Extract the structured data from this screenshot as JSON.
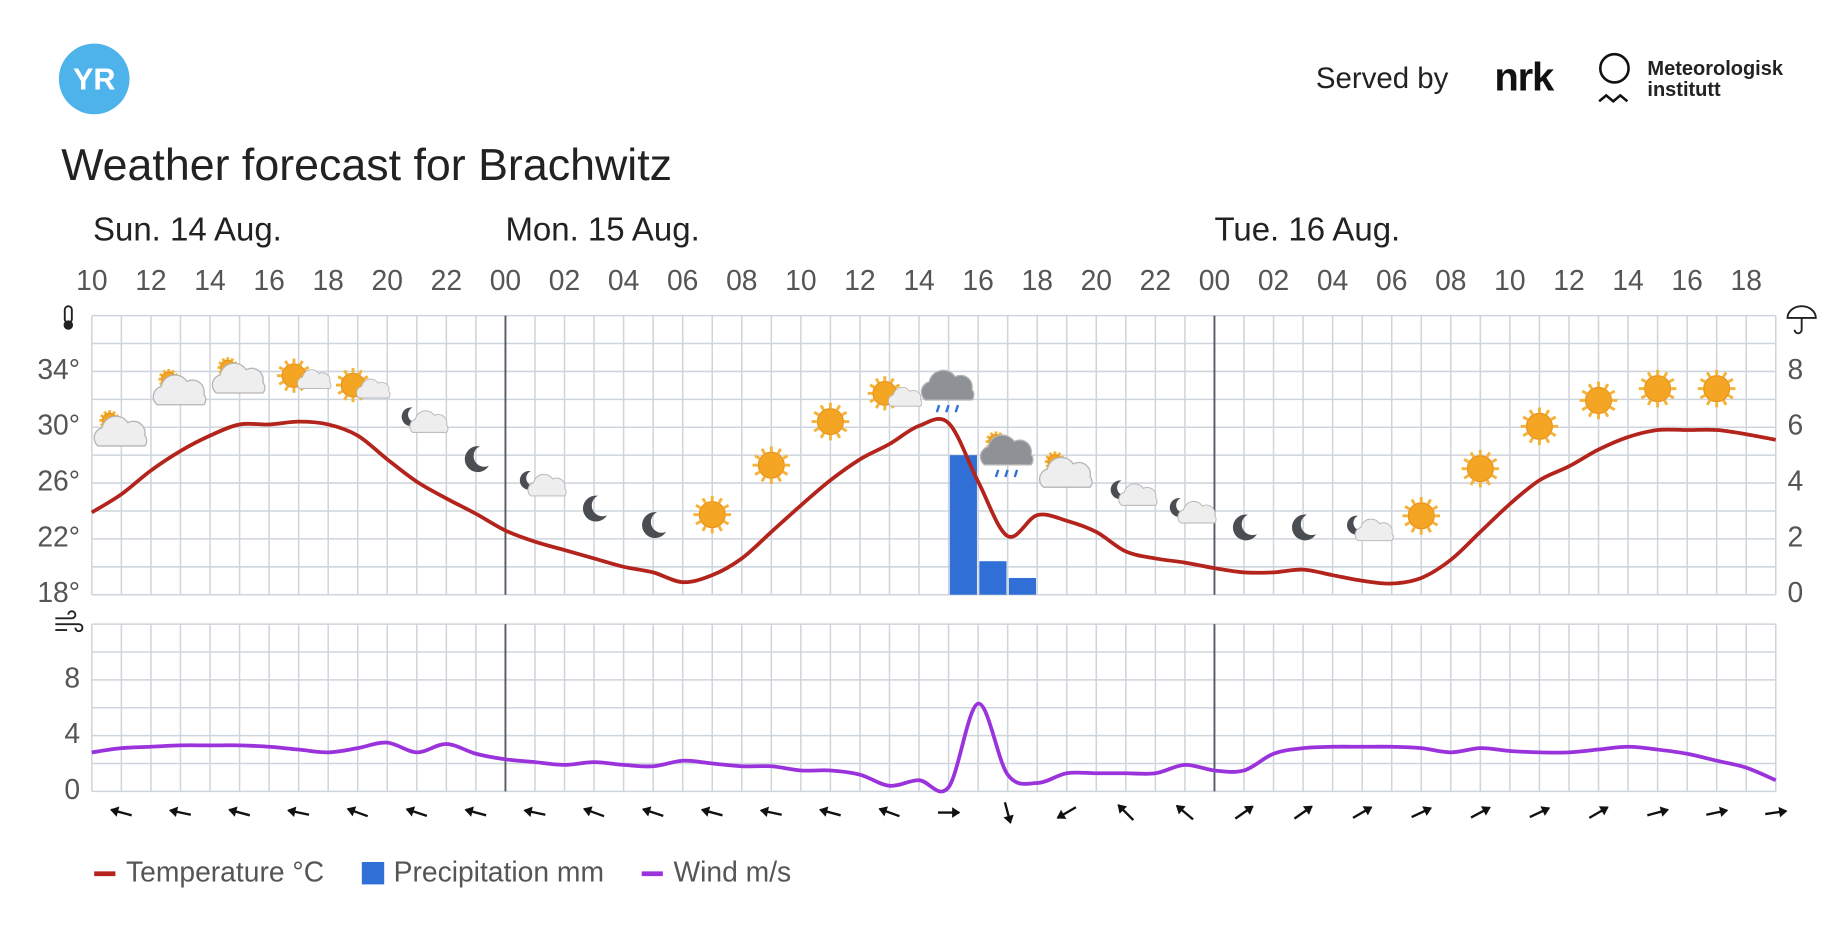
{
  "header": {
    "logo": "YR",
    "served_by": "Served by",
    "nrk": "nrk",
    "met": [
      "Meteorologisk",
      "institutt"
    ]
  },
  "chart_data": [
    {
      "type": "line",
      "title": "Weather forecast for Brachwitz",
      "days": [
        "Sun. 14 Aug.",
        "Mon. 15 Aug.",
        "Tue. 16 Aug."
      ],
      "categories": [
        "10",
        null,
        "12",
        null,
        "14",
        null,
        "16",
        null,
        "18",
        null,
        "20",
        null,
        "22",
        null,
        "00",
        null,
        "02",
        null,
        "04",
        null,
        "06",
        null,
        "08",
        null,
        "10",
        null,
        "12",
        null,
        "14",
        null,
        "16",
        null,
        "18",
        null,
        "20",
        null,
        "22",
        null,
        "00",
        null,
        "02",
        null,
        "04",
        null,
        "06",
        null,
        "08",
        null,
        "10",
        null,
        "12",
        null,
        "14",
        null,
        "16",
        null,
        "18",
        null
      ],
      "ylim": [
        18,
        38
      ],
      "yticks": [
        {
          "value": 18,
          "label": "18°"
        },
        {
          "value": 22,
          "label": "22°"
        },
        {
          "value": 26,
          "label": "26°"
        },
        {
          "value": 30,
          "label": "30°"
        },
        {
          "value": 34,
          "label": "34°"
        }
      ],
      "y2lim": [
        0,
        10
      ],
      "y2ticks": [
        0,
        2,
        4,
        6,
        8
      ],
      "grid": true,
      "series": [
        {
          "name": "Temperature °C",
          "color": "#b3241c",
          "values": [
            23.9,
            25.2,
            26.9,
            28.3,
            29.4,
            30.2,
            30.2,
            30.4,
            30.2,
            29.4,
            27.7,
            26.1,
            24.9,
            23.8,
            22.6,
            21.8,
            21.2,
            20.6,
            20.0,
            19.6,
            18.9,
            19.4,
            20.6,
            22.5,
            24.4,
            26.2,
            27.7,
            28.8,
            30.1,
            30.3,
            26.1,
            22.2,
            23.7,
            23.3,
            22.5,
            21.1,
            20.6,
            20.3,
            19.9,
            19.6,
            19.6,
            19.8,
            19.4,
            19.0,
            18.8,
            19.2,
            20.5,
            22.5,
            24.5,
            26.2,
            27.2,
            28.4,
            29.3,
            29.8,
            29.8,
            29.8,
            29.5,
            29.1
          ]
        },
        {
          "name": "Precipitation mm",
          "type": "bar",
          "axis": "y2",
          "color": "#2f6fd6",
          "values": [
            0,
            0,
            0,
            0,
            0,
            0,
            0,
            0,
            0,
            0,
            0,
            0,
            0,
            0,
            0,
            0,
            0,
            0,
            0,
            0,
            0,
            0,
            0,
            0,
            0,
            0,
            0,
            0,
            0,
            5.0,
            1.2,
            0.6,
            0,
            0,
            0,
            0,
            0,
            0,
            0,
            0,
            0,
            0,
            0,
            0,
            0,
            0,
            0,
            0,
            0,
            0,
            0,
            0,
            0,
            0,
            0,
            0,
            0,
            0
          ]
        }
      ]
    },
    {
      "type": "line",
      "ylim": [
        0,
        12
      ],
      "yticks": [
        0,
        4,
        8
      ],
      "grid": true,
      "series": [
        {
          "name": "Wind m/s",
          "color": "#9b33dd",
          "values": [
            2.8,
            3.1,
            3.2,
            3.3,
            3.3,
            3.3,
            3.2,
            3.0,
            2.8,
            3.1,
            3.5,
            2.8,
            3.4,
            2.7,
            2.3,
            2.1,
            1.9,
            2.1,
            1.9,
            1.8,
            2.2,
            2.0,
            1.8,
            1.8,
            1.5,
            1.5,
            1.2,
            0.4,
            0.8,
            0.3,
            6.3,
            1.2,
            0.6,
            1.3,
            1.3,
            1.3,
            1.3,
            1.9,
            1.5,
            1.5,
            2.7,
            3.1,
            3.2,
            3.2,
            3.2,
            3.1,
            2.8,
            3.1,
            2.9,
            2.8,
            2.8,
            3.0,
            3.2,
            3.0,
            2.7,
            2.2,
            1.7,
            0.8
          ],
          "directions": [
            null,
            285,
            null,
            282,
            null,
            285,
            null,
            282,
            null,
            290,
            null,
            288,
            null,
            285,
            null,
            282,
            null,
            290,
            null,
            288,
            null,
            285,
            null,
            282,
            null,
            285,
            null,
            290,
            null,
            90,
            null,
            165,
            null,
            240,
            null,
            315,
            null,
            310,
            null,
            55,
            null,
            55,
            null,
            60,
            null,
            65,
            null,
            62,
            null,
            65,
            null,
            60,
            null,
            75,
            null,
            78,
            null,
            82
          ]
        }
      ]
    }
  ]
}
